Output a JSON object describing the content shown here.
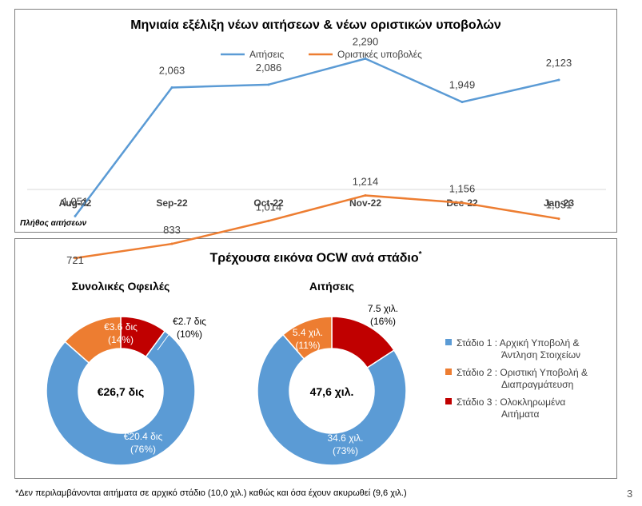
{
  "top_chart": {
    "title": "Μηνιαία εξέλιξη νέων αιτήσεων & νέων οριστικών υποβολών",
    "footer_label": "Πλήθος αιτήσεων"
  },
  "bottom_panel": {
    "title": "Τρέχουσα εικόνα OCW ανά στάδιο",
    "title_mark": "*",
    "legend": [
      {
        "text_line1": "Στάδιο 1 : Αρχική Υποβολή &",
        "text_line2": "Άντληση Στοιχείων"
      },
      {
        "text_line1": "Στάδιο 2 : Οριστική Υποβολή &",
        "text_line2": "Διαπραγμάτευση"
      },
      {
        "text_line1": "Στάδιο 3 : Ολοκληρωμένα",
        "text_line2": "Αιτήματα"
      }
    ]
  },
  "footnote": "*Δεν περιλαμβάνονται αιτήματα σε αρχικό στάδιο (10,0 χιλ.) καθώς και όσα έχουν ακυρωθεί (9,6 χιλ.)",
  "page_number": "3",
  "colors": {
    "blue": "#5b9bd5",
    "orange": "#ed7d31",
    "red": "#c00000",
    "grid": "#d9d9d9"
  },
  "chart_data": [
    {
      "type": "line",
      "title": "Μηνιαία εξέλιξη νέων αιτήσεων & νέων οριστικών υποβολών",
      "xlabel": "",
      "ylabel": "",
      "categories": [
        "Aug-22",
        "Sep-22",
        "Oct-22",
        "Nov-22",
        "Dec-22",
        "Jan-23"
      ],
      "series": [
        {
          "name": "Αιτήσεις",
          "values": [
            1051,
            2063,
            2086,
            2290,
            1949,
            2123
          ],
          "labels": [
            "1,051",
            "2,063",
            "2,086",
            "2,290",
            "1,949",
            "2,123"
          ],
          "color": "#5b9bd5"
        },
        {
          "name": "Οριστικές υποβολές",
          "values": [
            721,
            833,
            1014,
            1214,
            1156,
            1031
          ],
          "labels": [
            "721",
            "833",
            "1,014",
            "1,214",
            "1,156",
            "1,031"
          ],
          "color": "#ed7d31"
        }
      ],
      "ylim": [
        500,
        2500
      ],
      "legend": "top",
      "grid": false
    },
    {
      "type": "pie",
      "donut": true,
      "title": "Συνολικές Οφειλές",
      "center_label": "€26,7 δις",
      "slices": [
        {
          "stage": "Στάδιο 1",
          "value": 20.4,
          "label": "€20.4 δις",
          "pct": "(76%)",
          "color": "#5b9bd5"
        },
        {
          "stage": "Στάδιο 2",
          "value": 3.6,
          "label": "€3.6 δις",
          "pct": "(14%)",
          "color": "#ed7d31"
        },
        {
          "stage": "Στάδιο 3",
          "value": 2.7,
          "label": "€2.7 δις",
          "pct": "(10%)",
          "color": "#c00000"
        }
      ]
    },
    {
      "type": "pie",
      "donut": true,
      "title": "Αιτήσεις",
      "center_label": "47,6 χιλ.",
      "slices": [
        {
          "stage": "Στάδιο 1",
          "value": 34.6,
          "label": "34.6 χιλ.",
          "pct": "(73%)",
          "color": "#5b9bd5"
        },
        {
          "stage": "Στάδιο 2",
          "value": 5.4,
          "label": "5.4 χιλ.",
          "pct": "(11%)",
          "color": "#ed7d31"
        },
        {
          "stage": "Στάδιο 3",
          "value": 7.5,
          "label": "7.5 χιλ.",
          "pct": "(16%)",
          "color": "#c00000"
        }
      ]
    }
  ]
}
